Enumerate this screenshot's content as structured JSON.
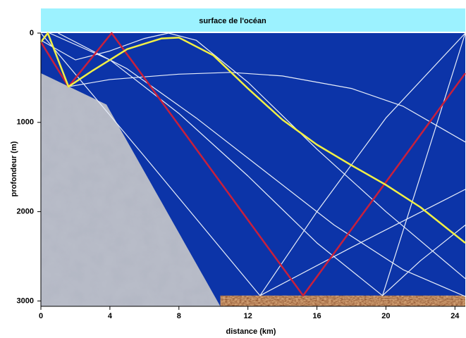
{
  "chart_data": {
    "type": "rays",
    "surface_label": "surface de l'océan",
    "xlabel": "distance (km)",
    "ylabel": "profondeur (m)",
    "xlim": [
      0,
      24.6
    ],
    "ylim": [
      0,
      3060
    ],
    "xticks": [
      0,
      4,
      8,
      12,
      16,
      20,
      24
    ],
    "yticks": [
      0,
      1000,
      2000,
      3000
    ],
    "ocean_color": "#0c34a8",
    "surface_color": "#9cf2ff",
    "rock": {
      "color": "#b8bcc8",
      "x": [
        0,
        3.8,
        10.4,
        0
      ],
      "y": [
        450,
        800,
        3060,
        3060
      ]
    },
    "sediment": {
      "color": "#8a4a24",
      "x": [
        10.4,
        24.6,
        24.6,
        10.4
      ],
      "y": [
        2940,
        2940,
        3060,
        3060
      ]
    },
    "rays": [
      {
        "color": "#e8eefa",
        "x": [
          0,
          6,
          12.7,
          18,
          24.6
        ],
        "y": [
          0,
          1380,
          2940,
          2400,
          1750
        ]
      },
      {
        "color": "#e8eefa",
        "x": [
          1.6,
          4,
          8,
          11,
          14,
          18,
          21,
          24.6
        ],
        "y": [
          600,
          520,
          460,
          440,
          480,
          620,
          820,
          1220
        ]
      },
      {
        "color": "#e8eefa",
        "x": [
          0,
          2,
          4,
          6,
          7.4,
          9,
          12,
          16,
          20,
          24.6
        ],
        "y": [
          80,
          300,
          200,
          60,
          0,
          80,
          550,
          1300,
          2000,
          2750
        ]
      },
      {
        "color": "#e8eefa",
        "x": [
          0.5,
          4,
          8,
          12,
          16,
          19.8,
          22,
          24.6
        ],
        "y": [
          0,
          300,
          900,
          1600,
          2350,
          2940,
          2550,
          2150
        ]
      },
      {
        "color": "#e8eefa",
        "x": [
          24.6,
          22,
          19.8
        ],
        "y": [
          0,
          1600,
          2940
        ]
      },
      {
        "color": "#e8eefa",
        "x": [
          12.7,
          16,
          20,
          24.6
        ],
        "y": [
          2940,
          2000,
          950,
          0
        ]
      },
      {
        "color": "#e8eefa",
        "x": [
          1,
          5,
          9,
          13,
          17,
          21,
          24.6
        ],
        "y": [
          0,
          400,
          950,
          1550,
          2150,
          2650,
          2950
        ]
      },
      {
        "color": "#c8203c",
        "x": [
          0,
          1.6,
          4.1,
          15.2,
          24.6
        ],
        "y": [
          100,
          600,
          0,
          2940,
          450
        ]
      },
      {
        "color": "#f2f044",
        "x": [
          0,
          0.4,
          1.6,
          3,
          5,
          7,
          8,
          10,
          12,
          14,
          16,
          18,
          20,
          22,
          24.6
        ],
        "y": [
          100,
          0,
          600,
          420,
          180,
          60,
          50,
          250,
          620,
          970,
          1250,
          1480,
          1700,
          1950,
          2350
        ]
      }
    ]
  }
}
